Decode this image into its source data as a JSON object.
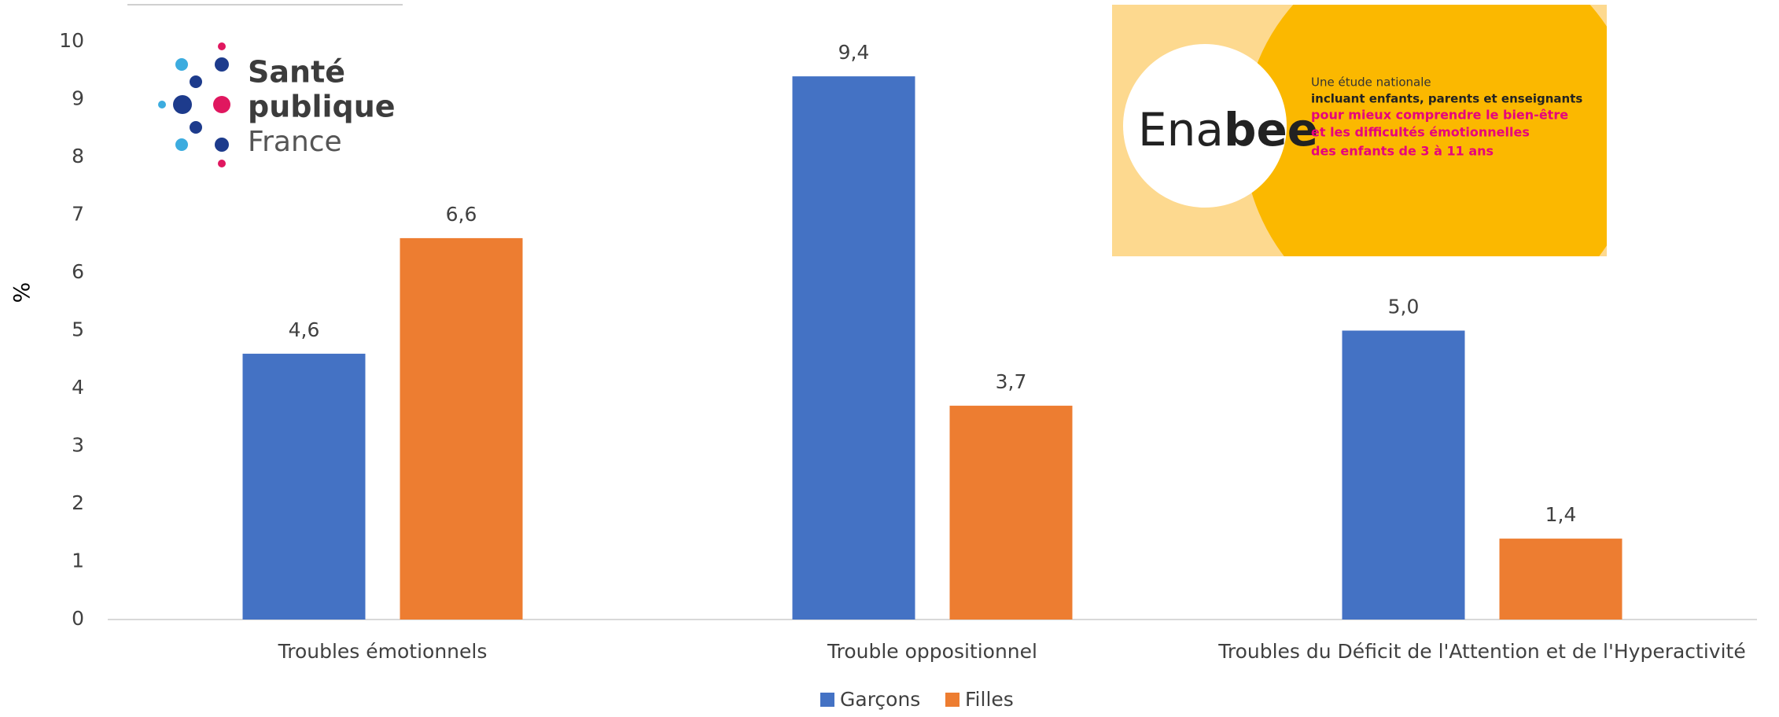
{
  "chart_data": {
    "type": "bar",
    "y_label": "%",
    "categories": [
      "Troubles émotionnels",
      "Trouble oppositionnel",
      "Troubles du Déficit de l'Attention et de l'Hyperactivité"
    ],
    "series": [
      {
        "name": "Garçons",
        "color": "#4472c4",
        "values": [
          4.6,
          9.4,
          5.0
        ],
        "value_labels": [
          "4,6",
          "9,4",
          "5,0"
        ]
      },
      {
        "name": "Filles",
        "color": "#ed7d31",
        "values": [
          6.6,
          3.7,
          1.4
        ],
        "value_labels": [
          "6,6",
          "3,7",
          "1,4"
        ]
      }
    ],
    "ylim": [
      0,
      10
    ],
    "yticks": [
      0,
      1,
      2,
      3,
      4,
      5,
      6,
      7,
      8,
      9,
      10
    ],
    "grid": false,
    "legend": "bottom"
  },
  "logos": {
    "sante_publique_france": [
      "Santé",
      "publique",
      "France"
    ],
    "enabee": {
      "name_start": "Ena",
      "name_end": "bee",
      "lines": [
        "Une étude nationale",
        "incluant enfants, parents et enseignants",
        "pour mieux comprendre le bien-être",
        "et les difficultés émotionnelles",
        "des enfants de 3 à 11 ans"
      ]
    }
  }
}
